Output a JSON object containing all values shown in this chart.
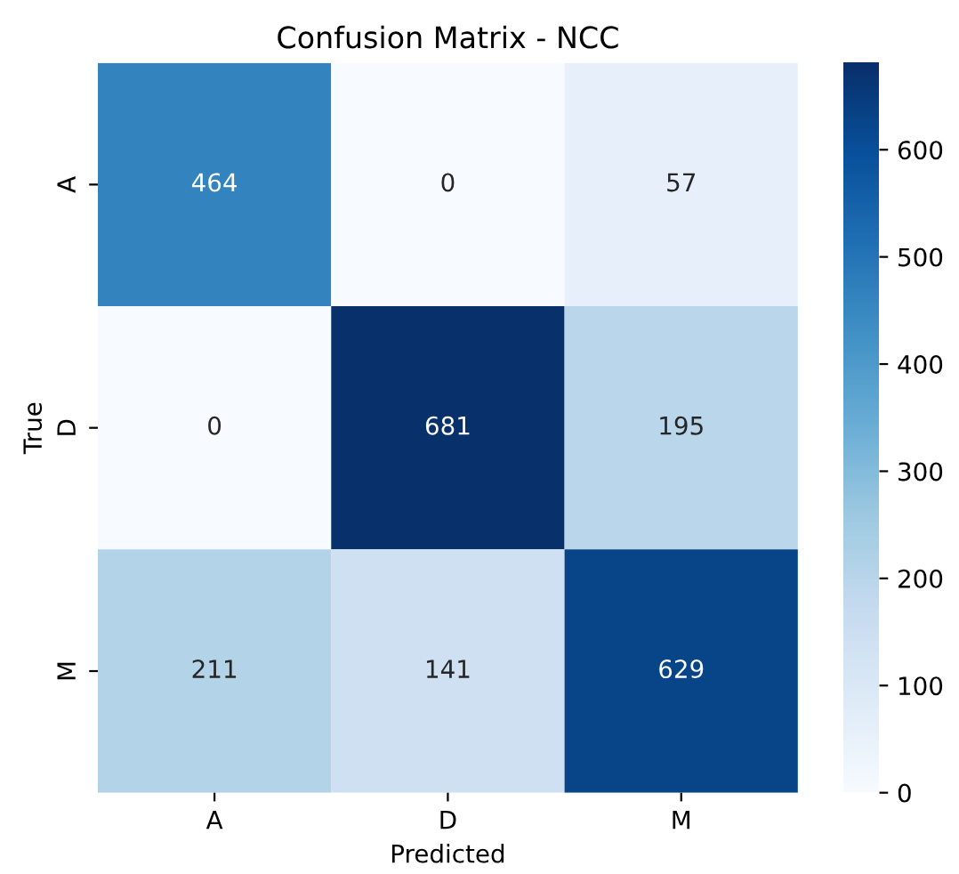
{
  "chart_data": {
    "type": "heatmap",
    "title": "Confusion Matrix - NCC",
    "xlabel": "Predicted",
    "ylabel": "True",
    "categories": [
      "A",
      "D",
      "M"
    ],
    "y_categories": [
      "A",
      "D",
      "M"
    ],
    "cells": [
      [
        464,
        0,
        57
      ],
      [
        0,
        681,
        195
      ],
      [
        211,
        141,
        629
      ]
    ],
    "clim": [
      0,
      681
    ],
    "cticks": [
      0,
      100,
      200,
      300,
      400,
      500,
      600
    ],
    "data_labels": true,
    "grid": false
  }
}
